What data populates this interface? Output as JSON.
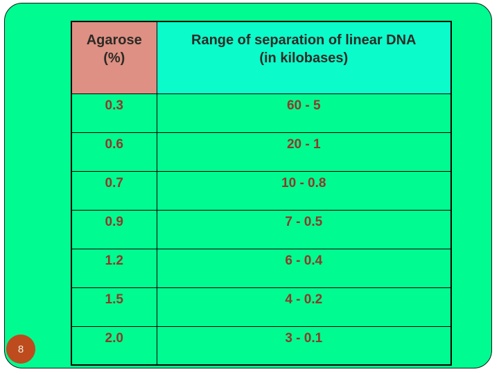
{
  "page": {
    "number": "8"
  },
  "colors": {
    "slide_bg": "#00fb90",
    "header_col1_bg": "#dd9083",
    "header_col2_bg": "#0bfbcb",
    "header_text": "#2d2a25",
    "cell_text": "#8f3928",
    "badge_bg": "#bd4b1d",
    "badge_text": "#ecf0da",
    "grid_line": "#000000"
  },
  "table": {
    "headers": [
      "Agarose\n(%)",
      "Range of separation of linear DNA\n(in kilobases)"
    ],
    "rows": [
      {
        "agarose": "0.3",
        "range": "60 - 5"
      },
      {
        "agarose": "0.6",
        "range": "20 - 1"
      },
      {
        "agarose": "0.7",
        "range": "10 - 0.8"
      },
      {
        "agarose": "0.9",
        "range": "7 - 0.5"
      },
      {
        "agarose": "1.2",
        "range": "6 - 0.4"
      },
      {
        "agarose": "1.5",
        "range": "4 - 0.2"
      },
      {
        "agarose": "2.0",
        "range": "3 - 0.1"
      }
    ]
  },
  "chart_data": {
    "type": "table",
    "title": "Range of separation of linear DNA by agarose concentration",
    "columns": [
      "Agarose (%)",
      "Range of separation of linear DNA (in kilobases)"
    ],
    "agarose_percent": [
      0.3,
      0.6,
      0.7,
      0.9,
      1.2,
      1.5,
      2.0
    ],
    "separation_range_kb": [
      [
        60,
        5
      ],
      [
        20,
        1
      ],
      [
        10,
        0.8
      ],
      [
        7,
        0.5
      ],
      [
        6,
        0.4
      ],
      [
        4,
        0.2
      ],
      [
        3,
        0.1
      ]
    ]
  }
}
